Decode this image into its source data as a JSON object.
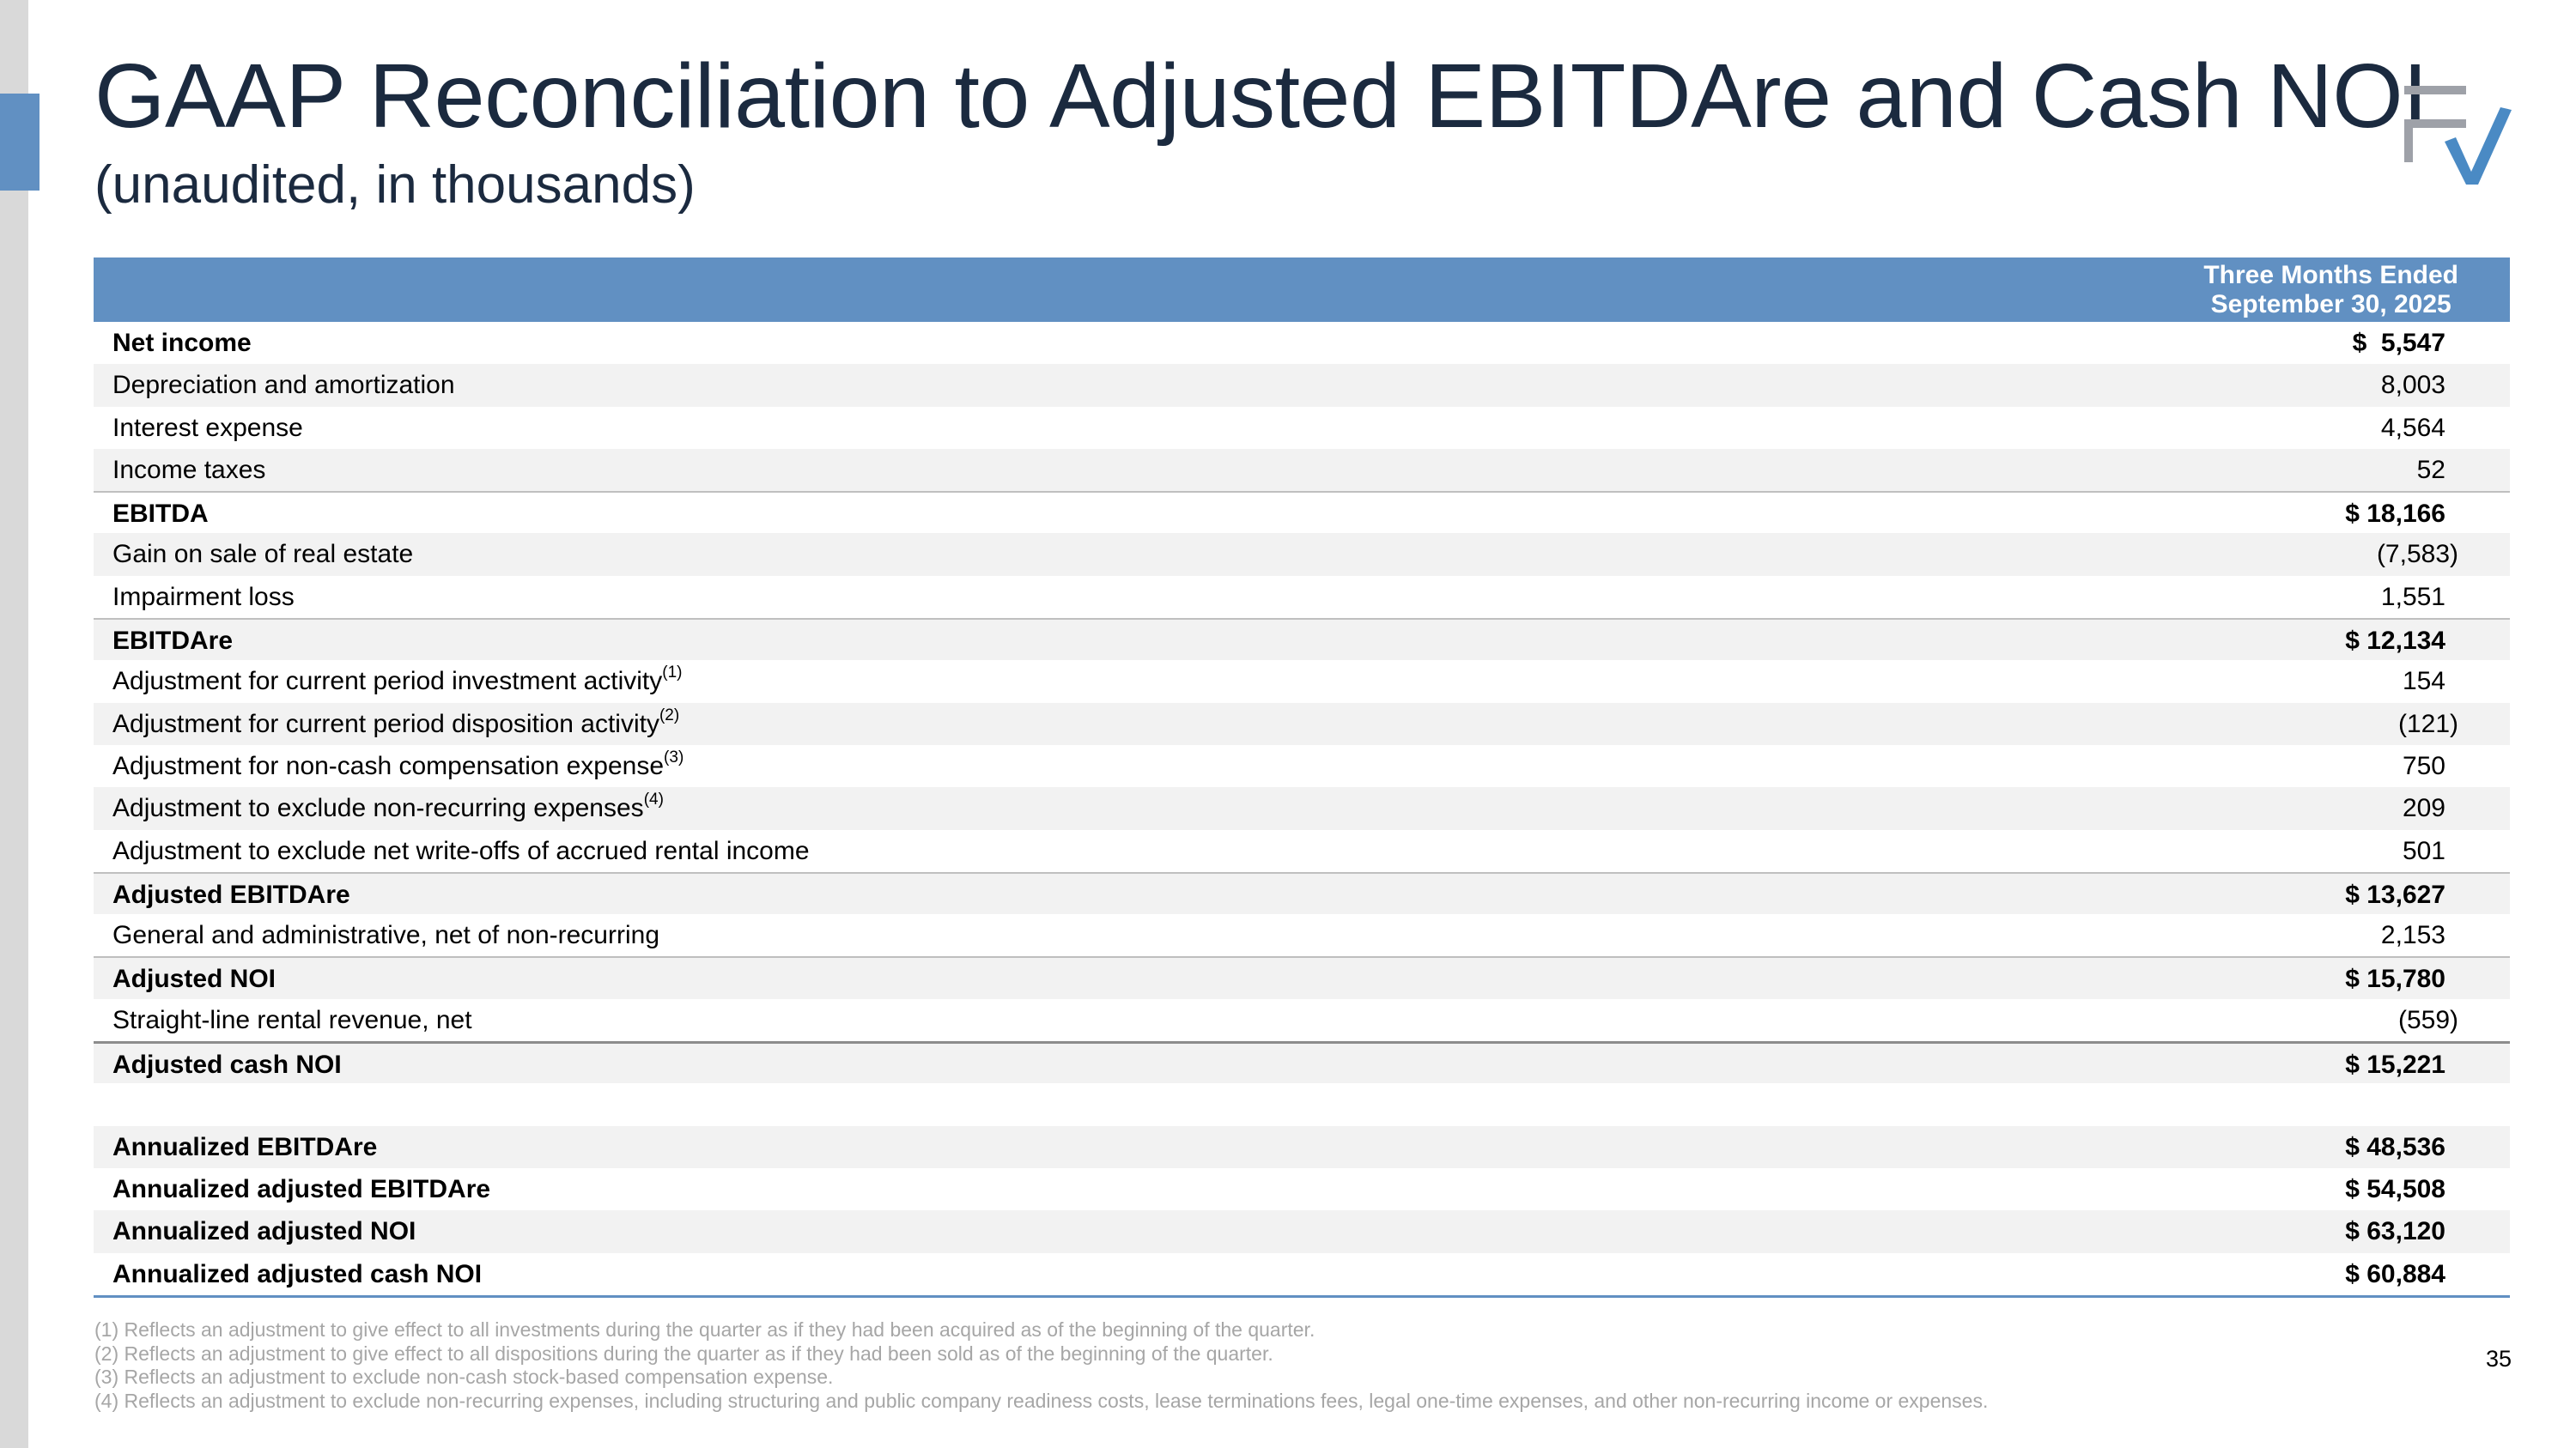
{
  "title": "GAAP Reconciliation to Adjusted EBITDAre and Cash NOI",
  "subtitle": "(unaudited, in thousands)",
  "table": {
    "header": [
      "Three Months Ended",
      "September 30, 2025"
    ],
    "rows": [
      {
        "label": "Net income",
        "value": "$  5,547",
        "bold": true
      },
      {
        "label": "Depreciation and amortization",
        "value": "8,003"
      },
      {
        "label": "Interest expense",
        "value": "4,564"
      },
      {
        "label": "Income taxes",
        "value": "52"
      },
      {
        "label": "EBITDA",
        "value": "$ 18,166",
        "bold": true
      },
      {
        "label": "Gain on sale of real estate",
        "value": "(7,583)"
      },
      {
        "label": "Impairment loss",
        "value": "1,551"
      },
      {
        "label": "EBITDAre",
        "value": "$ 12,134",
        "bold": true
      },
      {
        "label": "Adjustment for current period investment activity",
        "sup": "(1)",
        "value": "154"
      },
      {
        "label": "Adjustment for current period disposition activity",
        "sup": "(2)",
        "value": "(121)"
      },
      {
        "label": "Adjustment for non-cash compensation expense",
        "sup": "(3)",
        "value": "750"
      },
      {
        "label": "Adjustment to exclude non-recurring expenses",
        "sup": "(4)",
        "value": "209"
      },
      {
        "label": "Adjustment to exclude net write-offs of accrued rental income",
        "value": "501"
      },
      {
        "label": "Adjusted EBITDAre",
        "value": "$ 13,627",
        "bold": true
      },
      {
        "label": "General and administrative, net of non-recurring",
        "value": "2,153"
      },
      {
        "label": "Adjusted NOI",
        "value": "$ 15,780",
        "bold": true
      },
      {
        "label": "Straight-line rental revenue, net",
        "value": "(559)"
      },
      {
        "label": "Adjusted cash NOI",
        "value": "$ 15,221",
        "bold": true
      },
      {
        "label": "",
        "value": ""
      },
      {
        "label": "Annualized EBITDAre",
        "value": "$ 48,536",
        "bold": true
      },
      {
        "label": "Annualized adjusted EBITDAre",
        "value": "$ 54,508",
        "bold": true
      },
      {
        "label": "Annualized adjusted NOI",
        "value": "$ 63,120",
        "bold": true
      },
      {
        "label": "Annualized adjusted cash NOI",
        "value": "$ 60,884",
        "bold": true
      }
    ]
  },
  "footnotes": [
    "(1) Reflects an adjustment to give effect to all investments during the quarter as if they had been acquired as of the beginning of the quarter.",
    "(2) Reflects an adjustment to give effect to all dispositions during the quarter as if they had been sold as of the beginning of the quarter.",
    "(3) Reflects an adjustment to exclude non-cash stock-based compensation expense.",
    "(4) Reflects an adjustment to exclude non-recurring expenses, including structuring and public company readiness costs, lease terminations fees, legal one-time expenses, and other non-recurring income or expenses."
  ],
  "page_number": "35",
  "colors": {
    "accent": "#6190c2",
    "title": "#1b2a3f",
    "logo_gray": "#9ea1a8",
    "logo_blue": "#4a8ac4"
  }
}
